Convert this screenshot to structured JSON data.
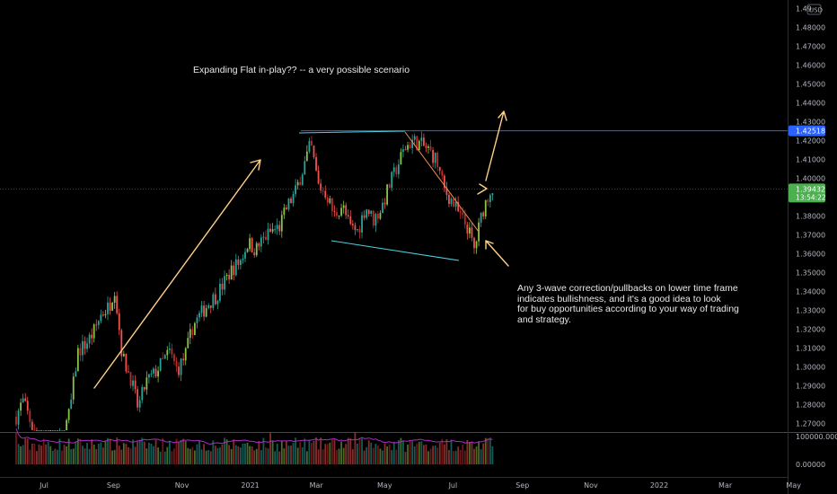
{
  "chart_data": {
    "type": "candlestick",
    "title": "",
    "price_scale": {
      "currency_label": "USD",
      "ticks": [
        "1.49",
        "1.48000",
        "1.47000",
        "1.46000",
        "1.45000",
        "1.44000",
        "1.43000",
        "1.42000",
        "1.41000",
        "1.40000",
        "1.39000",
        "1.38000",
        "1.37000",
        "1.36000",
        "1.35000",
        "1.34000",
        "1.33000",
        "1.32000",
        "1.31000",
        "1.30000",
        "1.29000",
        "1.28000",
        "1.27000"
      ],
      "ylim": [
        1.2665,
        1.4945
      ]
    },
    "volume_scale": {
      "ticks": [
        "100000.00000",
        "0.00000"
      ]
    },
    "time_axis": {
      "ticks": [
        "Jul",
        "Sep",
        "Nov",
        "2021",
        "Mar",
        "May",
        "Jul",
        "Sep",
        "Nov",
        "2022",
        "Mar",
        "May"
      ]
    },
    "badges": {
      "horizontal_line_price": "1.42518",
      "last_price": "1.39432",
      "countdown": "13:54:22"
    },
    "key_levels": {
      "horizontal_line": 1.42518,
      "last_price": 1.39432
    },
    "price_path": [
      [
        "2020-06-05",
        1.272
      ],
      [
        "2020-06-12",
        1.282
      ],
      [
        "2020-06-19",
        1.271
      ],
      [
        "2020-06-26",
        1.258
      ],
      [
        "2020-07-03",
        1.25
      ],
      [
        "2020-07-10",
        1.258
      ],
      [
        "2020-07-17",
        1.262
      ],
      [
        "2020-07-24",
        1.276
      ],
      [
        "2020-07-31",
        1.308
      ],
      [
        "2020-08-07",
        1.312
      ],
      [
        "2020-08-14",
        1.318
      ],
      [
        "2020-08-21",
        1.328
      ],
      [
        "2020-08-28",
        1.332
      ],
      [
        "2020-09-02",
        1.342
      ],
      [
        "2020-09-09",
        1.305
      ],
      [
        "2020-09-16",
        1.295
      ],
      [
        "2020-09-23",
        1.278
      ],
      [
        "2020-09-30",
        1.292
      ],
      [
        "2020-10-07",
        1.296
      ],
      [
        "2020-10-14",
        1.302
      ],
      [
        "2020-10-21",
        1.308
      ],
      [
        "2020-10-28",
        1.298
      ],
      [
        "2020-11-04",
        1.306
      ],
      [
        "2020-11-11",
        1.322
      ],
      [
        "2020-11-18",
        1.328
      ],
      [
        "2020-11-25",
        1.334
      ],
      [
        "2020-12-02",
        1.338
      ],
      [
        "2020-12-09",
        1.345
      ],
      [
        "2020-12-16",
        1.352
      ],
      [
        "2020-12-23",
        1.356
      ],
      [
        "2020-12-30",
        1.366
      ],
      [
        "2021-01-06",
        1.362
      ],
      [
        "2021-01-13",
        1.368
      ],
      [
        "2021-01-20",
        1.372
      ],
      [
        "2021-01-27",
        1.374
      ],
      [
        "2021-02-03",
        1.385
      ],
      [
        "2021-02-10",
        1.392
      ],
      [
        "2021-02-17",
        1.405
      ],
      [
        "2021-02-24",
        1.418
      ],
      [
        "2021-03-03",
        1.396
      ],
      [
        "2021-03-10",
        1.392
      ],
      [
        "2021-03-17",
        1.38
      ],
      [
        "2021-03-24",
        1.386
      ],
      [
        "2021-03-31",
        1.374
      ],
      [
        "2021-04-07",
        1.372
      ],
      [
        "2021-04-14",
        1.385
      ],
      [
        "2021-04-21",
        1.378
      ],
      [
        "2021-04-28",
        1.384
      ],
      [
        "2021-05-05",
        1.396
      ],
      [
        "2021-05-12",
        1.406
      ],
      [
        "2021-05-19",
        1.416
      ],
      [
        "2021-05-26",
        1.42
      ],
      [
        "2021-06-02",
        1.418
      ],
      [
        "2021-06-09",
        1.415
      ],
      [
        "2021-06-16",
        1.41
      ],
      [
        "2021-06-23",
        1.394
      ],
      [
        "2021-06-30",
        1.388
      ],
      [
        "2021-07-07",
        1.38
      ],
      [
        "2021-07-14",
        1.374
      ],
      [
        "2021-07-20",
        1.362
      ],
      [
        "2021-07-27",
        1.382
      ],
      [
        "2021-08-03",
        1.394
      ],
      [
        "2021-08-06",
        1.394
      ]
    ]
  },
  "annotations": {
    "headline": "Expanding Flat in-play?? -- a very possible scenario",
    "note": "Any 3-wave correction/pullbacks on lower time frame\nindicates bullishness, and it's a good idea to look\nfor buy opportunities according to your way of trading\nand strategy."
  },
  "colors": {
    "background": "#000000",
    "candle_up": "#26a69a",
    "candle_down": "#ef5350",
    "candle_up_alt": "#8bc34a",
    "candle_down_alt": "#c62828",
    "horizontal_line": "#2962ff",
    "flat_channel": "#4dd0e1",
    "trend_line": "#f48c54",
    "arrows": "#ffd089",
    "last_price_badge": "#4caf50",
    "level_badge": "#2962ff",
    "axis_text": "#b2b5be",
    "volume_ma": "#ad2cc7"
  }
}
